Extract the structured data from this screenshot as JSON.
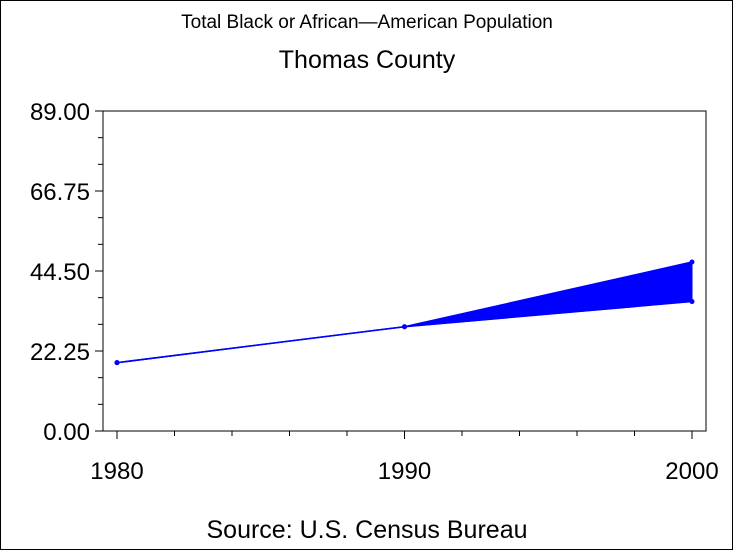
{
  "chart_data": {
    "type": "area",
    "title": "Total Black or African—American Population",
    "subtitle": "Thomas County",
    "footnote": "Source: U.S. Census Bureau",
    "xlabel": "",
    "ylabel": "",
    "x_ticks": [
      "1980",
      "1990",
      "2000"
    ],
    "y_ticks": [
      "0.00",
      "22.25",
      "44.50",
      "66.75",
      "89.00"
    ],
    "xlim": [
      1980,
      2000
    ],
    "ylim": [
      0,
      89
    ],
    "grid": false,
    "legend": "none",
    "color": "#0000ff",
    "series": [
      {
        "x": [
          1980,
          1990,
          2000
        ],
        "values": [
          19,
          29,
          47
        ]
      },
      {
        "x": [
          1980,
          1990,
          2000
        ],
        "values": [
          19,
          29,
          36
        ]
      }
    ]
  }
}
